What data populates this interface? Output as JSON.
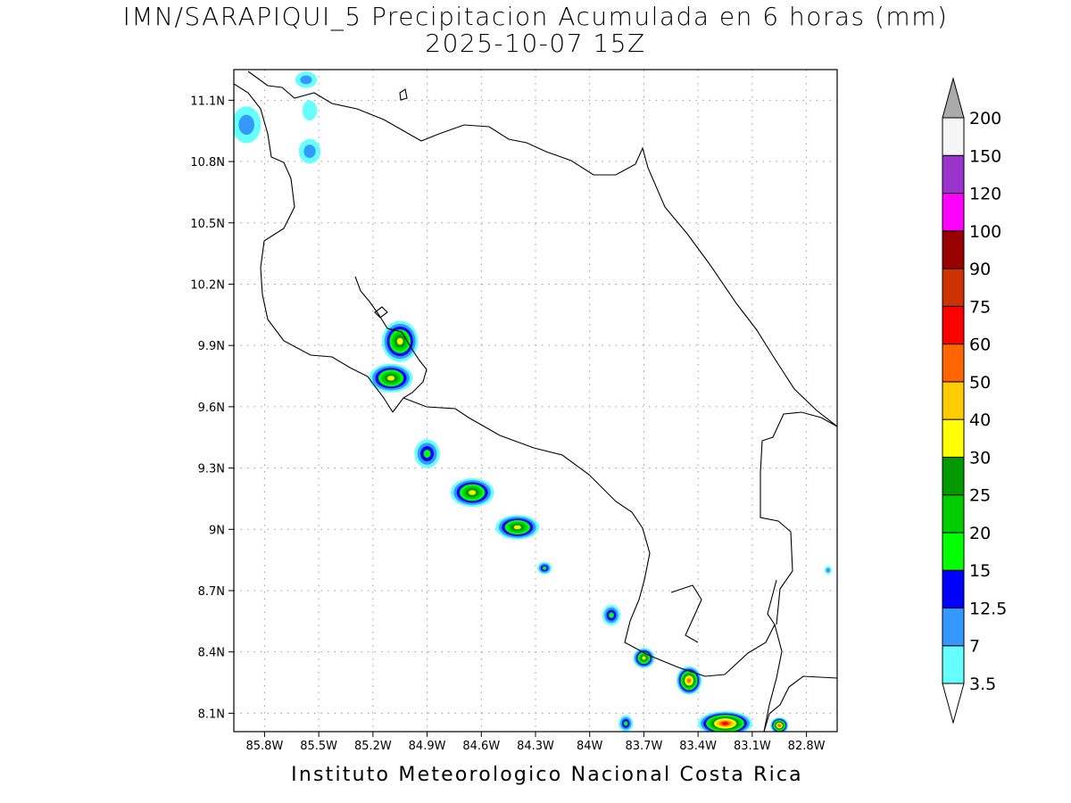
{
  "title": "IMN/SARAPIQUI_5 Precipitacion Acumulada en 6 horas (mm)",
  "subtitle": "2025-10-07 15Z",
  "footer": "Instituto Meteorologico Nacional Costa Rica",
  "map": {
    "lon_range": [
      -85.97,
      -82.63
    ],
    "lat_range": [
      8.01,
      11.25
    ],
    "lat_ticks": [
      {
        "value": 11.1,
        "label": "11.1N"
      },
      {
        "value": 10.8,
        "label": "10.8N"
      },
      {
        "value": 10.5,
        "label": "10.5N"
      },
      {
        "value": 10.2,
        "label": "10.2N"
      },
      {
        "value": 9.9,
        "label": "9.9N"
      },
      {
        "value": 9.6,
        "label": "9.6N"
      },
      {
        "value": 9.3,
        "label": "9.3N"
      },
      {
        "value": 9.0,
        "label": "9N"
      },
      {
        "value": 8.7,
        "label": "8.7N"
      },
      {
        "value": 8.4,
        "label": "8.4N"
      },
      {
        "value": 8.1,
        "label": "8.1N"
      }
    ],
    "lon_ticks": [
      {
        "value": -85.8,
        "label": "85.8W"
      },
      {
        "value": -85.5,
        "label": "85.5W"
      },
      {
        "value": -85.2,
        "label": "85.2W"
      },
      {
        "value": -84.9,
        "label": "84.9W"
      },
      {
        "value": -84.6,
        "label": "84.6W"
      },
      {
        "value": -84.3,
        "label": "84.3W"
      },
      {
        "value": -84.0,
        "label": "84W"
      },
      {
        "value": -83.7,
        "label": "83.7W"
      },
      {
        "value": -83.4,
        "label": "83.4W"
      },
      {
        "value": -83.1,
        "label": "83.1W"
      },
      {
        "value": -82.8,
        "label": "82.8W"
      }
    ],
    "grid": "dotted",
    "coastline_color": "#000000"
  },
  "colorbar": {
    "unit": "mm",
    "levels": [
      {
        "label": "3.5",
        "color": "#66ffff"
      },
      {
        "label": "7",
        "color": "#3399ff"
      },
      {
        "label": "12.5",
        "color": "#0000ff"
      },
      {
        "label": "15",
        "color": "#00ff00"
      },
      {
        "label": "20",
        "color": "#00cc00"
      },
      {
        "label": "25",
        "color": "#009900"
      },
      {
        "label": "30",
        "color": "#ffff00"
      },
      {
        "label": "40",
        "color": "#ffcc00"
      },
      {
        "label": "50",
        "color": "#ff6600"
      },
      {
        "label": "60",
        "color": "#ff0000"
      },
      {
        "label": "75",
        "color": "#cc3300"
      },
      {
        "label": "90",
        "color": "#990000"
      },
      {
        "label": "100",
        "color": "#ff00ff"
      },
      {
        "label": "120",
        "color": "#9933cc"
      },
      {
        "label": "150",
        "color": "#f5f5f5"
      },
      {
        "label": "200",
        "color": "#aaaaaa"
      }
    ]
  },
  "rain_cells": [
    {
      "lon": -85.9,
      "lat": 10.98,
      "rx": 0.08,
      "ry": 0.09,
      "max": "7"
    },
    {
      "lon": -85.55,
      "lat": 10.85,
      "rx": 0.06,
      "ry": 0.06,
      "max": "7"
    },
    {
      "lon": -85.57,
      "lat": 11.2,
      "rx": 0.06,
      "ry": 0.04,
      "max": "7"
    },
    {
      "lon": -85.55,
      "lat": 11.05,
      "rx": 0.04,
      "ry": 0.05,
      "max": "3.5"
    },
    {
      "lon": -85.05,
      "lat": 9.92,
      "rx": 0.1,
      "ry": 0.1,
      "max": "30"
    },
    {
      "lon": -85.1,
      "lat": 9.74,
      "rx": 0.12,
      "ry": 0.07,
      "max": "30"
    },
    {
      "lon": -84.9,
      "lat": 9.37,
      "rx": 0.07,
      "ry": 0.07,
      "max": "15"
    },
    {
      "lon": -84.65,
      "lat": 9.18,
      "rx": 0.12,
      "ry": 0.07,
      "max": "30"
    },
    {
      "lon": -84.4,
      "lat": 9.01,
      "rx": 0.12,
      "ry": 0.06,
      "max": "30"
    },
    {
      "lon": -84.25,
      "lat": 8.81,
      "rx": 0.04,
      "ry": 0.03,
      "max": "15"
    },
    {
      "lon": -83.88,
      "lat": 8.58,
      "rx": 0.05,
      "ry": 0.05,
      "max": "15"
    },
    {
      "lon": -83.7,
      "lat": 8.37,
      "rx": 0.06,
      "ry": 0.05,
      "max": "30"
    },
    {
      "lon": -83.45,
      "lat": 8.26,
      "rx": 0.07,
      "ry": 0.07,
      "max": "50"
    },
    {
      "lon": -83.25,
      "lat": 8.05,
      "rx": 0.15,
      "ry": 0.06,
      "max": "60"
    },
    {
      "lon": -82.95,
      "lat": 8.04,
      "rx": 0.05,
      "ry": 0.04,
      "max": "50"
    },
    {
      "lon": -83.8,
      "lat": 8.05,
      "rx": 0.04,
      "ry": 0.04,
      "max": "15"
    },
    {
      "lon": -82.68,
      "lat": 8.8,
      "rx": 0.02,
      "ry": 0.02,
      "max": "7"
    }
  ]
}
